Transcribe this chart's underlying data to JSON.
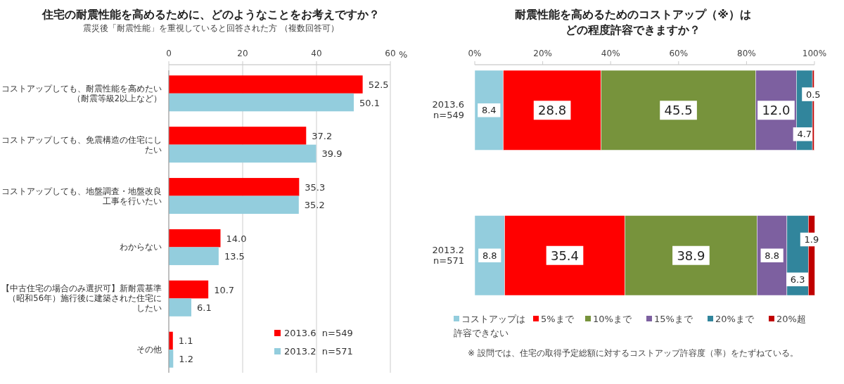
{
  "chart_data": [
    {
      "type": "bar",
      "orientation": "horizontal",
      "title": "住宅の耐震性能を高めるために、どのようなことをお考えですか？",
      "subtitle": "震災後「耐震性能」を重視していると回答された方 （複数回答可）",
      "xlabel": "%",
      "categories": [
        "コストアップしても、耐震性能を高めたい（耐震等級2以上など）",
        "コストアップしても、免震構造の住宅にしたい",
        "コストアップしても、地盤調査・地盤改良工事を行いたい",
        "わからない",
        "【中古住宅の場合のみ選択可】新耐震基準（昭和56年）施行後に建築された住宅にしたい",
        "その他"
      ],
      "series": [
        {
          "name": "2013.6  n=549",
          "color": "#ff0000",
          "values": [
            52.5,
            37.2,
            35.3,
            14.0,
            10.7,
            1.1
          ],
          "value_labels": [
            "52.5",
            "37.2",
            "35.3",
            "14.0",
            "10.7",
            "1.1"
          ]
        },
        {
          "name": "2013.2  n=571",
          "color": "#93cddd",
          "values": [
            50.1,
            39.9,
            35.2,
            13.5,
            6.1,
            1.2
          ],
          "value_labels": [
            "50.1",
            "39.9",
            "35.2",
            "13.5",
            "6.1",
            "1.2"
          ]
        }
      ],
      "xlim": [
        0,
        60
      ],
      "xticks": [
        0,
        20,
        40,
        60
      ],
      "grid": "x",
      "legend": "bottom right"
    },
    {
      "type": "bar",
      "orientation": "horizontal",
      "stacked": true,
      "title": "耐震性能を高めるためのコストアップ（※）はどの程度許容できますか？",
      "categories": [
        "2013.6\nn=549",
        "2013.2\nn=571"
      ],
      "series": [
        {
          "name": "コストアップは許容できない",
          "color": "#93cddd",
          "values": [
            8.4,
            8.8
          ],
          "value_labels": [
            "8.4",
            "8.8"
          ]
        },
        {
          "name": "5%まで",
          "color": "#ff0000",
          "values": [
            28.8,
            35.4
          ],
          "value_labels": [
            "28.8",
            "35.4"
          ]
        },
        {
          "name": "10%まで",
          "color": "#77933c",
          "values": [
            45.5,
            38.9
          ],
          "value_labels": [
            "45.5",
            "38.9"
          ]
        },
        {
          "name": "15%まで",
          "color": "#7d60a0",
          "values": [
            12.0,
            8.8
          ],
          "value_labels": [
            "12.0",
            "8.8"
          ]
        },
        {
          "name": "20%まで",
          "color": "#31859c",
          "values": [
            4.7,
            6.3
          ],
          "value_labels": [
            "4.7",
            "6.3"
          ]
        },
        {
          "name": "20%超",
          "color": "#c00000",
          "values": [
            0.5,
            1.9
          ],
          "value_labels": [
            "0.5",
            "1.9"
          ]
        }
      ],
      "xlim": [
        0,
        100
      ],
      "xticks": [
        {
          "value": 0,
          "label": "0%"
        },
        {
          "value": 20,
          "label": "20%"
        },
        {
          "value": 40,
          "label": "40%"
        },
        {
          "value": 60,
          "label": "60%"
        },
        {
          "value": 80,
          "label": "80%"
        },
        {
          "value": 100,
          "label": "100%"
        }
      ],
      "grid": false,
      "legend": "bottom",
      "annotations": [
        "※ 設問では、住宅の取得予定総額に対するコストアップ許容度（率）をたずねている。"
      ]
    }
  ]
}
